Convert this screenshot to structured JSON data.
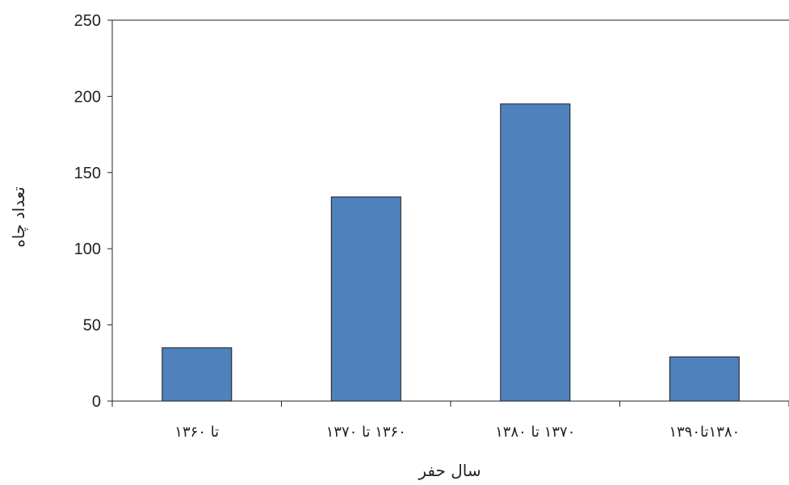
{
  "chart_data": {
    "type": "bar",
    "categories": [
      "تا ۱۳۶۰",
      "۱۳۶۰ تا ۱۳۷۰",
      "۱۳۷۰ تا ۱۳۸۰",
      "۱۳۸۰تا۱۳۹۰"
    ],
    "values": [
      35,
      134,
      195,
      29
    ],
    "title": "",
    "xlabel": "سال حفر",
    "ylabel": "تعداد چاه",
    "ylim": [
      0,
      250
    ],
    "yticks": [
      0,
      50,
      100,
      150,
      200,
      250
    ],
    "grid": false,
    "legend": "none",
    "bar_color": "#4f81bd",
    "bar_edge_color": "#1a1a1a",
    "axis_color": "#222222"
  }
}
